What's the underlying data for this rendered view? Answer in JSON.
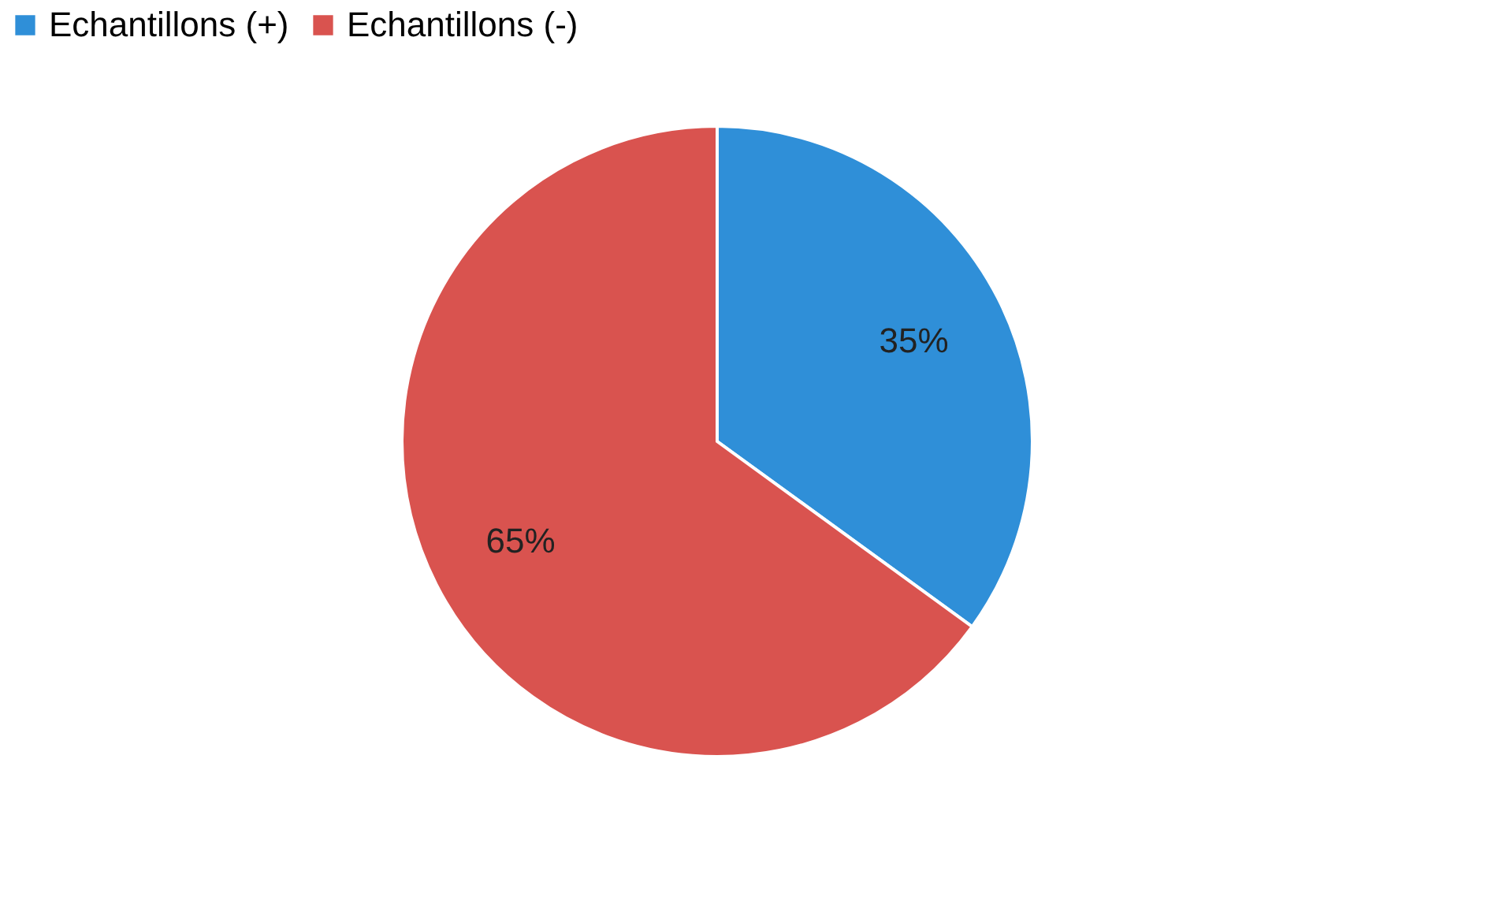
{
  "chart_data": {
    "type": "pie",
    "categories": [
      "Echantillons (+)",
      "Echantillons (-)"
    ],
    "values": [
      35,
      65
    ],
    "colors": [
      "#2f8fd8",
      "#d9534f"
    ],
    "value_labels": [
      "35%",
      "65%"
    ],
    "legend": "top"
  }
}
